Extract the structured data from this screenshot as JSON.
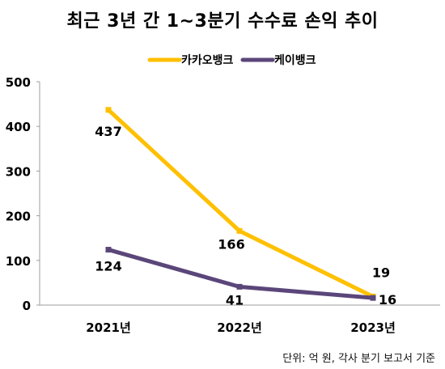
{
  "title": "최근 3년 간 1~3분기 수수료 손익 추이",
  "source_note": "단위: 억 원, 각사 분기 보고서 기준",
  "chart_data": {
    "type": "line",
    "title": "최근 3년 간 1~3분기 수수료 손익 추이",
    "categories": [
      "2021년",
      "2022년",
      "2023년"
    ],
    "series": [
      {
        "name": "카카오뱅크",
        "values": [
          437,
          166,
          19
        ],
        "color": "#FFC000"
      },
      {
        "name": "케이뱅크",
        "values": [
          124,
          41,
          16
        ],
        "color": "#5B467A"
      }
    ],
    "ylim": [
      0,
      500
    ],
    "yticks": [
      "0",
      "100",
      "200",
      "300",
      "400",
      "500"
    ],
    "grid": false,
    "legend": "top-center"
  }
}
